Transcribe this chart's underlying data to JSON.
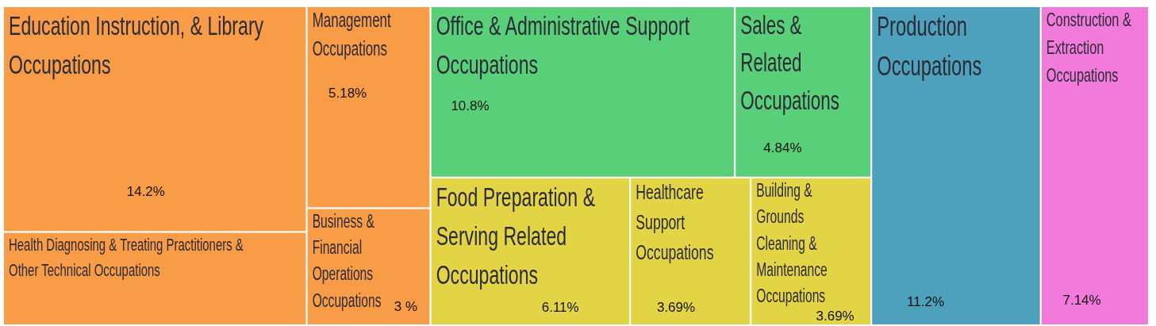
{
  "chart_data": {
    "type": "other",
    "categories": [
      "Education Instruction, & Library Occupations",
      "Health Diagnosing & Treating Practitioners & Other Technical Occupations",
      "Management Occupations",
      "Business & Financial Operations Occupations",
      "Office & Administrative Support Occupations",
      "Sales & Related Occupations",
      "Food Preparation & Serving Related Occupations",
      "Healthcare Support Occupations",
      "Building & Grounds Cleaning & Maintenance Occupations",
      "Production Occupations",
      "Construction & Extraction Occupations"
    ],
    "values": [
      14.2,
      null,
      5.18,
      3,
      10.8,
      4.84,
      6.11,
      3.69,
      3.69,
      11.2,
      7.14
    ],
    "value_labels": [
      "14.2%",
      null,
      "5.18%",
      "3 %",
      "10.8%",
      "4.84%",
      "6.11%",
      "3.69%",
      "3.69%",
      "11.2%",
      "7.14%"
    ],
    "colors": [
      "#f89c47",
      "#f89c47",
      "#f89c47",
      "#f89c47",
      "#59cf7a",
      "#59cf7a",
      "#e2d444",
      "#e2d444",
      "#e2d444",
      "#4ea1bd",
      "#f27adb"
    ]
  }
}
